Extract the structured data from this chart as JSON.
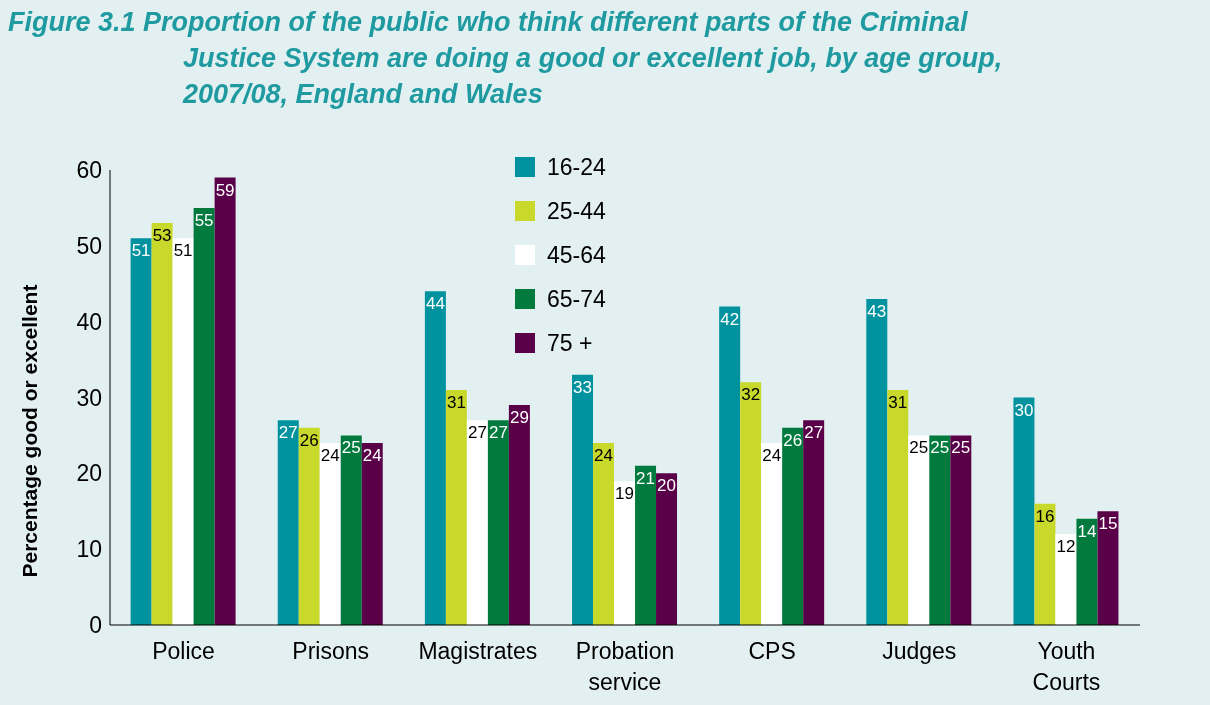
{
  "chart_data": {
    "type": "bar",
    "title": "Figure 3.1   Proportion of the public who think different parts of the Criminal Justice System are doing a good or excellent job, by age group, 2007/08, England and Wales",
    "ylabel": "Percentage good or excellent",
    "categories": [
      "Police",
      "Prisons",
      "Magistrates",
      "Probation service",
      "CPS",
      "Judges",
      "Youth Courts"
    ],
    "series": [
      {
        "name": "16-24",
        "color": "#00929f",
        "values": [
          51,
          27,
          44,
          33,
          42,
          43,
          30
        ]
      },
      {
        "name": "25-44",
        "color": "#c8d92b",
        "values": [
          53,
          26,
          31,
          24,
          32,
          31,
          16
        ]
      },
      {
        "name": "45-64",
        "color": "#ffffff",
        "values": [
          51,
          24,
          27,
          19,
          24,
          25,
          12
        ]
      },
      {
        "name": "65-74",
        "color": "#007a3d",
        "values": [
          55,
          25,
          27,
          21,
          26,
          25,
          14
        ]
      },
      {
        "name": "75 +",
        "color": "#5a0048",
        "values": [
          59,
          24,
          29,
          20,
          27,
          25,
          15
        ]
      }
    ],
    "ylim": [
      0,
      60
    ],
    "yticks": [
      0,
      10,
      20,
      30,
      40,
      50,
      60
    ],
    "grid": false,
    "legend": "top",
    "data_labels": true
  }
}
